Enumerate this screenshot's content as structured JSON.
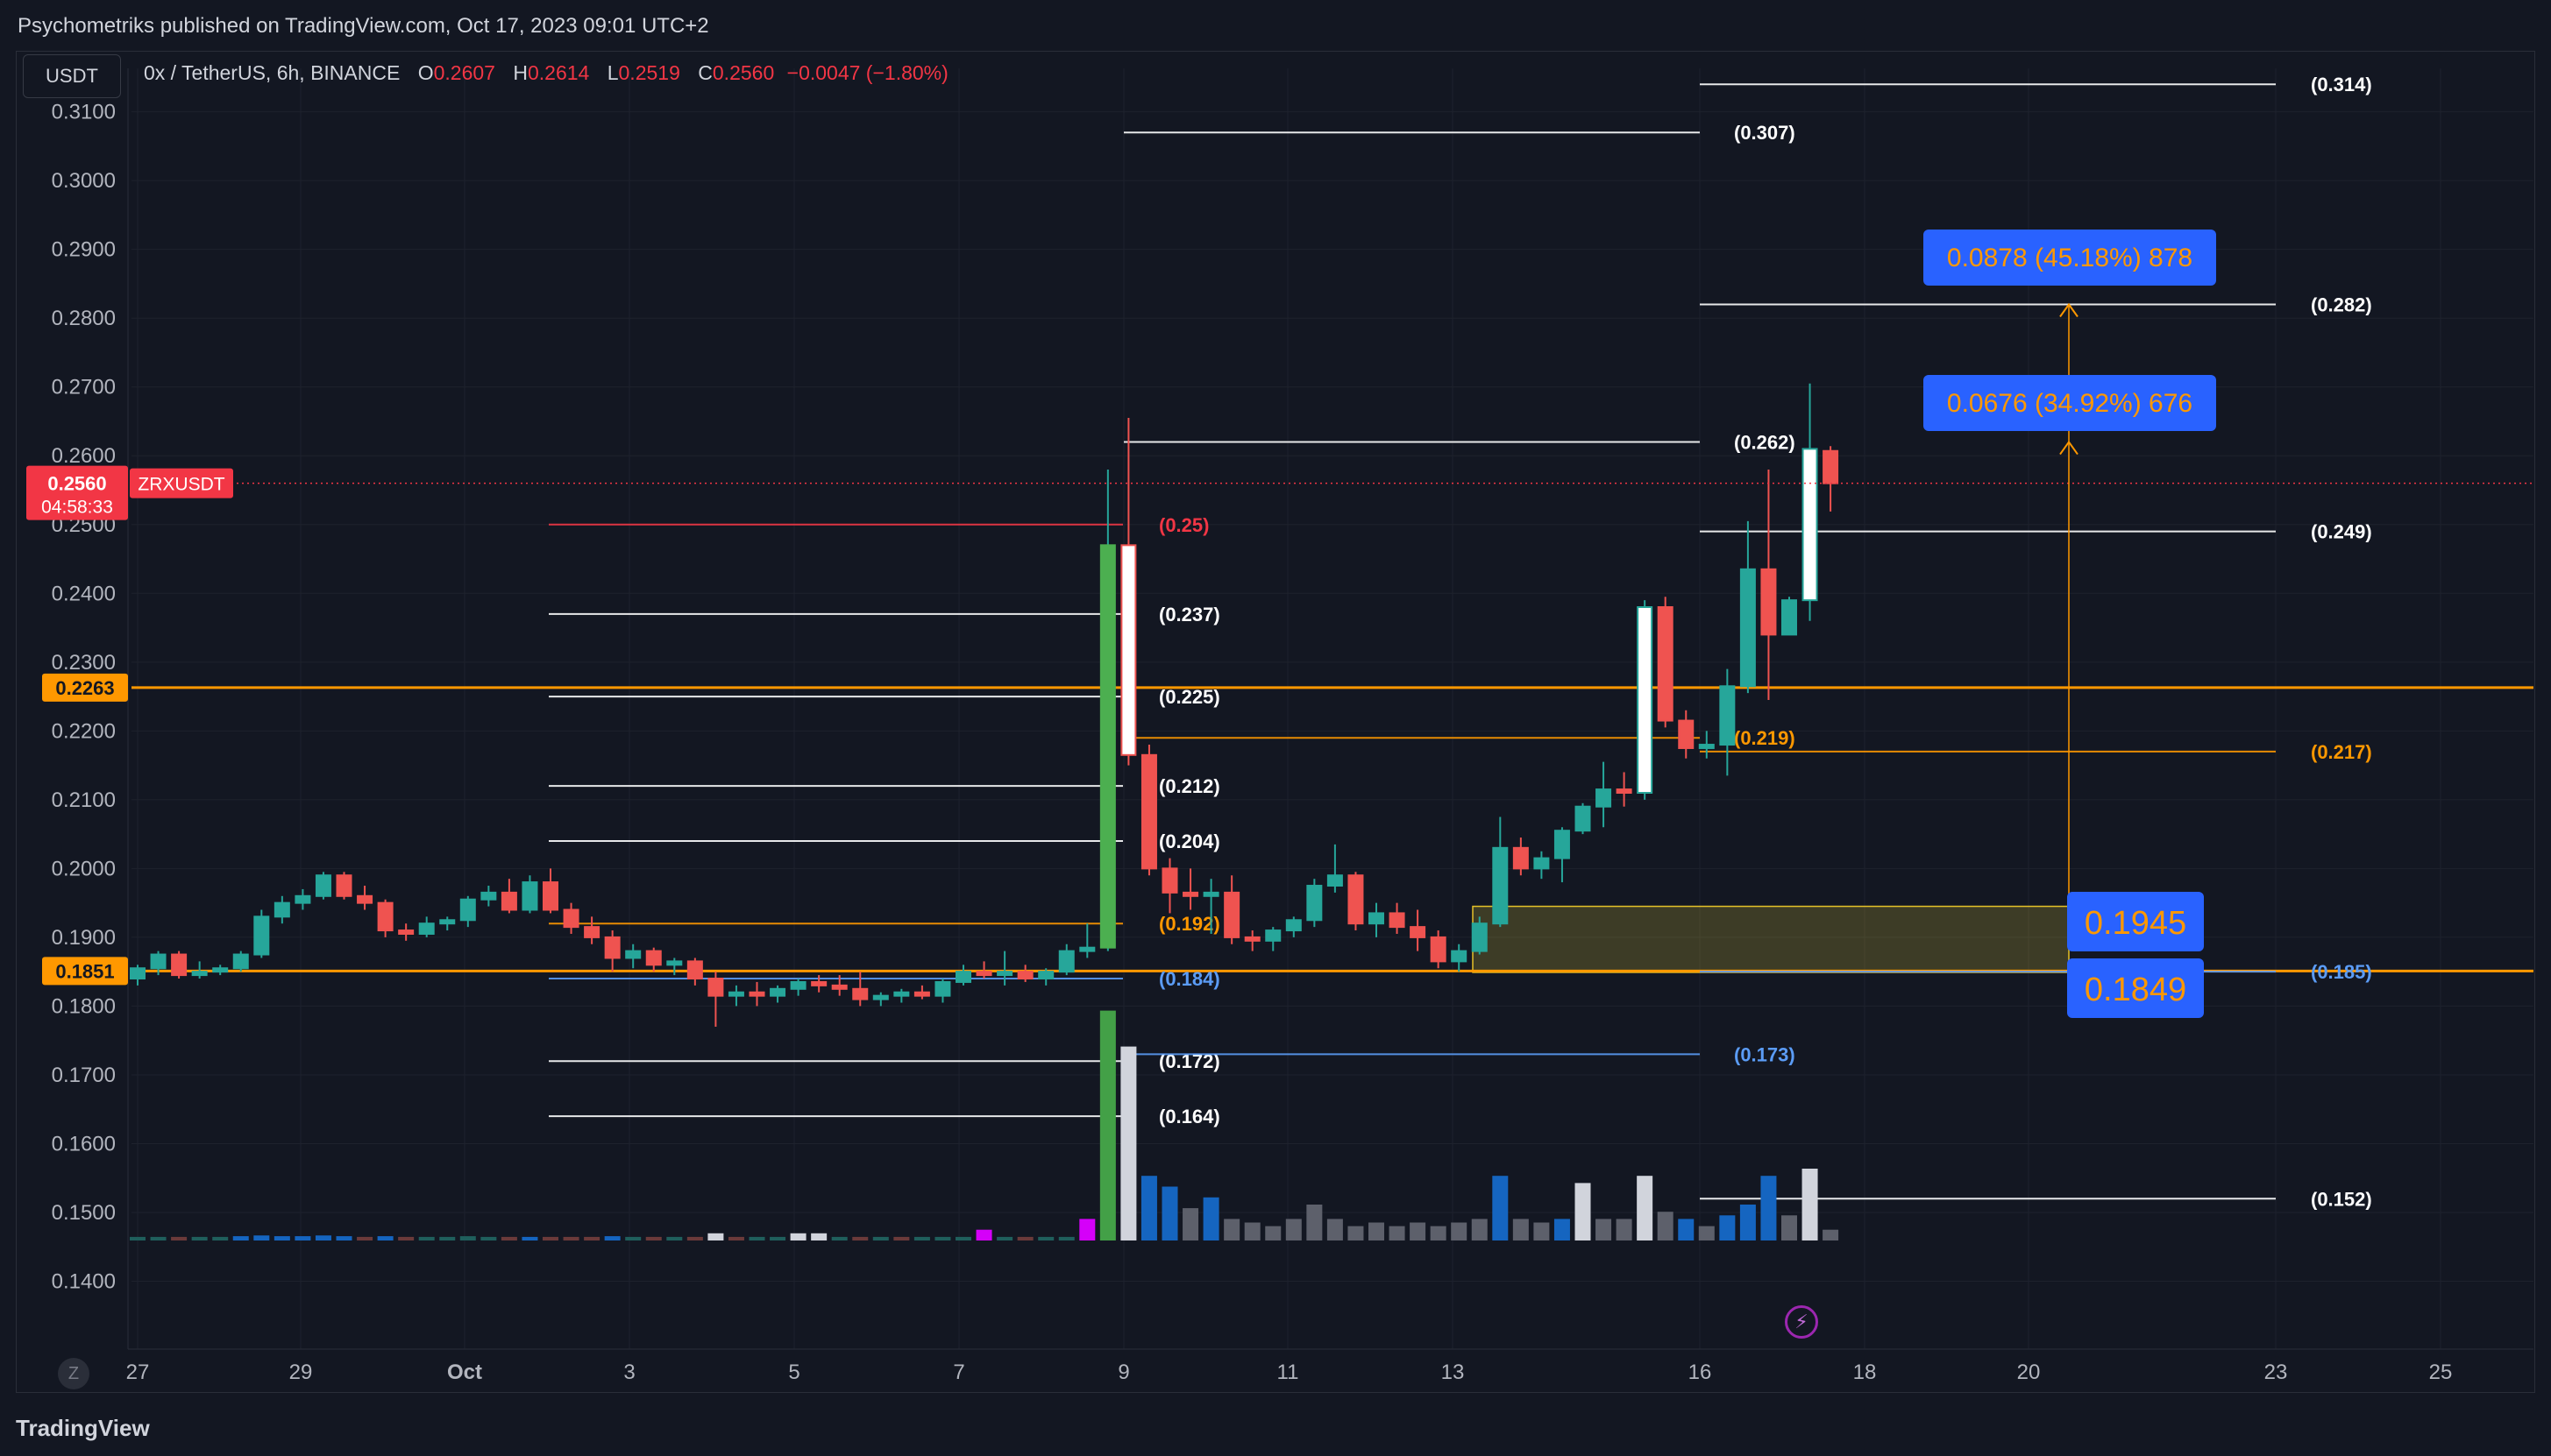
{
  "header": {
    "publish_text": "Psychometriks published on TradingView.com, Oct 17, 2023 09:01 UTC+2"
  },
  "toolbar": {
    "currency": "USDT"
  },
  "legend": {
    "symbol": "0x / TetherUS, 6h, BINANCE",
    "o_label": "O",
    "o_value": "0.2607",
    "h_label": "H",
    "h_value": "0.2614",
    "l_label": "L",
    "l_value": "0.2519",
    "c_label": "C",
    "c_value": "0.2560",
    "change": "−0.0047 (−1.80%)"
  },
  "footer": {
    "brand": "TradingView",
    "timezone_button": "Z"
  },
  "colors": {
    "background": "#131722",
    "up": "#26a69a",
    "down": "#ef5350",
    "big_up": "#4caf50",
    "accent": "#ff9800",
    "blue_label": "#2962ff",
    "grid": "#1e222d"
  },
  "chart_data": {
    "type": "candlestick",
    "title": "0x / TetherUS, 6h, BINANCE",
    "symbol": "ZRXUSDT",
    "y_axis": {
      "ticks": [
        "0.3100",
        "0.3000",
        "0.2900",
        "0.2800",
        "0.2700",
        "0.2600",
        "0.2500",
        "0.2400",
        "0.2300",
        "0.2200",
        "0.2100",
        "0.2000",
        "0.1900",
        "0.1800",
        "0.1700",
        "0.1600",
        "0.1500",
        "0.1400"
      ],
      "range": [
        0.1365,
        0.3125
      ]
    },
    "x_axis": {
      "ticks": [
        "27",
        "29",
        "Oct",
        "3",
        "5",
        "7",
        "9",
        "11",
        "13",
        "16",
        "18",
        "20",
        "23",
        "25"
      ]
    },
    "price_labels": [
      {
        "text": "0.2560",
        "sub": "04:58:33",
        "tag": "ZRXUSDT",
        "price": 0.256,
        "color": "#f23645"
      },
      {
        "text": "0.2263",
        "price": 0.2263,
        "color": "#ff9800"
      },
      {
        "text": "0.1851",
        "price": 0.1851,
        "color": "#ff9800"
      }
    ],
    "candles": [
      {
        "o": 0.184,
        "h": 0.186,
        "l": 0.183,
        "c": 0.1855
      },
      {
        "o": 0.1855,
        "h": 0.188,
        "l": 0.1845,
        "c": 0.1875
      },
      {
        "o": 0.1875,
        "h": 0.188,
        "l": 0.184,
        "c": 0.1845
      },
      {
        "o": 0.1845,
        "h": 0.1865,
        "l": 0.184,
        "c": 0.185
      },
      {
        "o": 0.185,
        "h": 0.186,
        "l": 0.1845,
        "c": 0.1855
      },
      {
        "o": 0.1855,
        "h": 0.188,
        "l": 0.185,
        "c": 0.1875
      },
      {
        "o": 0.1875,
        "h": 0.194,
        "l": 0.187,
        "c": 0.193
      },
      {
        "o": 0.193,
        "h": 0.196,
        "l": 0.192,
        "c": 0.195
      },
      {
        "o": 0.195,
        "h": 0.197,
        "l": 0.194,
        "c": 0.196
      },
      {
        "o": 0.196,
        "h": 0.1995,
        "l": 0.1955,
        "c": 0.199
      },
      {
        "o": 0.199,
        "h": 0.1995,
        "l": 0.1955,
        "c": 0.196
      },
      {
        "o": 0.196,
        "h": 0.1975,
        "l": 0.194,
        "c": 0.195
      },
      {
        "o": 0.195,
        "h": 0.1955,
        "l": 0.19,
        "c": 0.191
      },
      {
        "o": 0.191,
        "h": 0.192,
        "l": 0.1895,
        "c": 0.1905
      },
      {
        "o": 0.1905,
        "h": 0.193,
        "l": 0.19,
        "c": 0.192
      },
      {
        "o": 0.192,
        "h": 0.193,
        "l": 0.191,
        "c": 0.1925
      },
      {
        "o": 0.1925,
        "h": 0.196,
        "l": 0.1915,
        "c": 0.1955
      },
      {
        "o": 0.1955,
        "h": 0.1975,
        "l": 0.1945,
        "c": 0.1965
      },
      {
        "o": 0.1965,
        "h": 0.1985,
        "l": 0.1935,
        "c": 0.194
      },
      {
        "o": 0.194,
        "h": 0.199,
        "l": 0.1935,
        "c": 0.198
      },
      {
        "o": 0.198,
        "h": 0.2,
        "l": 0.1935,
        "c": 0.194
      },
      {
        "o": 0.194,
        "h": 0.195,
        "l": 0.1905,
        "c": 0.1915
      },
      {
        "o": 0.1915,
        "h": 0.193,
        "l": 0.189,
        "c": 0.19
      },
      {
        "o": 0.19,
        "h": 0.191,
        "l": 0.185,
        "c": 0.187
      },
      {
        "o": 0.187,
        "h": 0.189,
        "l": 0.1855,
        "c": 0.188
      },
      {
        "o": 0.188,
        "h": 0.1885,
        "l": 0.185,
        "c": 0.186
      },
      {
        "o": 0.186,
        "h": 0.187,
        "l": 0.1845,
        "c": 0.1865
      },
      {
        "o": 0.1865,
        "h": 0.187,
        "l": 0.183,
        "c": 0.184
      },
      {
        "o": 0.184,
        "h": 0.185,
        "l": 0.177,
        "c": 0.1815
      },
      {
        "o": 0.1815,
        "h": 0.183,
        "l": 0.18,
        "c": 0.182
      },
      {
        "o": 0.182,
        "h": 0.1835,
        "l": 0.18,
        "c": 0.1815
      },
      {
        "o": 0.1815,
        "h": 0.183,
        "l": 0.1805,
        "c": 0.1825
      },
      {
        "o": 0.1825,
        "h": 0.184,
        "l": 0.1815,
        "c": 0.1835
      },
      {
        "o": 0.1835,
        "h": 0.1845,
        "l": 0.182,
        "c": 0.183
      },
      {
        "o": 0.183,
        "h": 0.1845,
        "l": 0.1815,
        "c": 0.1825
      },
      {
        "o": 0.1825,
        "h": 0.185,
        "l": 0.18,
        "c": 0.181
      },
      {
        "o": 0.181,
        "h": 0.182,
        "l": 0.18,
        "c": 0.1815
      },
      {
        "o": 0.1815,
        "h": 0.1825,
        "l": 0.1805,
        "c": 0.182
      },
      {
        "o": 0.182,
        "h": 0.183,
        "l": 0.181,
        "c": 0.1815
      },
      {
        "o": 0.1815,
        "h": 0.184,
        "l": 0.1805,
        "c": 0.1835
      },
      {
        "o": 0.1835,
        "h": 0.186,
        "l": 0.183,
        "c": 0.185
      },
      {
        "o": 0.185,
        "h": 0.1865,
        "l": 0.184,
        "c": 0.1845
      },
      {
        "o": 0.1845,
        "h": 0.188,
        "l": 0.183,
        "c": 0.185
      },
      {
        "o": 0.185,
        "h": 0.186,
        "l": 0.1835,
        "c": 0.184
      },
      {
        "o": 0.184,
        "h": 0.1855,
        "l": 0.183,
        "c": 0.185
      },
      {
        "o": 0.185,
        "h": 0.189,
        "l": 0.1845,
        "c": 0.188
      },
      {
        "o": 0.188,
        "h": 0.192,
        "l": 0.187,
        "c": 0.1885
      },
      {
        "o": 0.1885,
        "h": 0.258,
        "l": 0.188,
        "c": 0.247
      },
      {
        "o": 0.247,
        "h": 0.2655,
        "l": 0.215,
        "c": 0.2165
      },
      {
        "o": 0.2165,
        "h": 0.218,
        "l": 0.199,
        "c": 0.2
      },
      {
        "o": 0.2,
        "h": 0.2015,
        "l": 0.1935,
        "c": 0.1965
      },
      {
        "o": 0.1965,
        "h": 0.2,
        "l": 0.194,
        "c": 0.196
      },
      {
        "o": 0.196,
        "h": 0.1985,
        "l": 0.1905,
        "c": 0.1965
      },
      {
        "o": 0.1965,
        "h": 0.199,
        "l": 0.189,
        "c": 0.19
      },
      {
        "o": 0.19,
        "h": 0.191,
        "l": 0.188,
        "c": 0.1895
      },
      {
        "o": 0.1895,
        "h": 0.1915,
        "l": 0.188,
        "c": 0.191
      },
      {
        "o": 0.191,
        "h": 0.193,
        "l": 0.19,
        "c": 0.1925
      },
      {
        "o": 0.1925,
        "h": 0.1985,
        "l": 0.1915,
        "c": 0.1975
      },
      {
        "o": 0.1975,
        "h": 0.2035,
        "l": 0.1965,
        "c": 0.199
      },
      {
        "o": 0.199,
        "h": 0.1995,
        "l": 0.191,
        "c": 0.192
      },
      {
        "o": 0.192,
        "h": 0.195,
        "l": 0.19,
        "c": 0.1935
      },
      {
        "o": 0.1935,
        "h": 0.195,
        "l": 0.1905,
        "c": 0.1915
      },
      {
        "o": 0.1915,
        "h": 0.194,
        "l": 0.188,
        "c": 0.19
      },
      {
        "o": 0.19,
        "h": 0.191,
        "l": 0.1855,
        "c": 0.1865
      },
      {
        "o": 0.1865,
        "h": 0.189,
        "l": 0.185,
        "c": 0.188
      },
      {
        "o": 0.188,
        "h": 0.193,
        "l": 0.1875,
        "c": 0.192
      },
      {
        "o": 0.192,
        "h": 0.2075,
        "l": 0.1915,
        "c": 0.203
      },
      {
        "o": 0.203,
        "h": 0.2045,
        "l": 0.199,
        "c": 0.2
      },
      {
        "o": 0.2,
        "h": 0.2025,
        "l": 0.1985,
        "c": 0.2015
      },
      {
        "o": 0.2015,
        "h": 0.206,
        "l": 0.198,
        "c": 0.2055
      },
      {
        "o": 0.2055,
        "h": 0.2095,
        "l": 0.205,
        "c": 0.209
      },
      {
        "o": 0.209,
        "h": 0.2155,
        "l": 0.206,
        "c": 0.2115
      },
      {
        "o": 0.2115,
        "h": 0.214,
        "l": 0.209,
        "c": 0.211
      },
      {
        "o": 0.211,
        "h": 0.239,
        "l": 0.21,
        "c": 0.238
      },
      {
        "o": 0.238,
        "h": 0.2395,
        "l": 0.2205,
        "c": 0.2215
      },
      {
        "o": 0.2215,
        "h": 0.223,
        "l": 0.216,
        "c": 0.2175
      },
      {
        "o": 0.2175,
        "h": 0.22,
        "l": 0.216,
        "c": 0.218
      },
      {
        "o": 0.218,
        "h": 0.229,
        "l": 0.2135,
        "c": 0.2265
      },
      {
        "o": 0.2265,
        "h": 0.2505,
        "l": 0.2255,
        "c": 0.2435
      },
      {
        "o": 0.2435,
        "h": 0.258,
        "l": 0.2245,
        "c": 0.234
      },
      {
        "o": 0.234,
        "h": 0.2395,
        "l": 0.234,
        "c": 0.239
      },
      {
        "o": 0.239,
        "h": 0.2705,
        "l": 0.236,
        "c": 0.261
      },
      {
        "o": 0.2607,
        "h": 0.2614,
        "l": 0.2519,
        "c": 0.256
      }
    ],
    "volume": [
      {
        "v": 0.05,
        "c": "up"
      },
      {
        "v": 0.05,
        "c": "up"
      },
      {
        "v": 0.05,
        "c": "dn"
      },
      {
        "v": 0.05,
        "c": "up"
      },
      {
        "v": 0.05,
        "c": "up"
      },
      {
        "v": 0.06,
        "c": "blue"
      },
      {
        "v": 0.07,
        "c": "blue"
      },
      {
        "v": 0.06,
        "c": "blue"
      },
      {
        "v": 0.06,
        "c": "blue"
      },
      {
        "v": 0.07,
        "c": "blue"
      },
      {
        "v": 0.06,
        "c": "blue"
      },
      {
        "v": 0.05,
        "c": "dn"
      },
      {
        "v": 0.06,
        "c": "blue"
      },
      {
        "v": 0.05,
        "c": "dn"
      },
      {
        "v": 0.05,
        "c": "up"
      },
      {
        "v": 0.05,
        "c": "up"
      },
      {
        "v": 0.06,
        "c": "up"
      },
      {
        "v": 0.05,
        "c": "up"
      },
      {
        "v": 0.05,
        "c": "dn"
      },
      {
        "v": 0.05,
        "c": "blue"
      },
      {
        "v": 0.05,
        "c": "dn"
      },
      {
        "v": 0.05,
        "c": "dn"
      },
      {
        "v": 0.05,
        "c": "dn"
      },
      {
        "v": 0.06,
        "c": "blue"
      },
      {
        "v": 0.05,
        "c": "up"
      },
      {
        "v": 0.05,
        "c": "dn"
      },
      {
        "v": 0.05,
        "c": "up"
      },
      {
        "v": 0.05,
        "c": "dn"
      },
      {
        "v": 0.1,
        "c": "white"
      },
      {
        "v": 0.05,
        "c": "dn"
      },
      {
        "v": 0.05,
        "c": "up"
      },
      {
        "v": 0.05,
        "c": "up"
      },
      {
        "v": 0.1,
        "c": "white"
      },
      {
        "v": 0.1,
        "c": "white"
      },
      {
        "v": 0.05,
        "c": "up"
      },
      {
        "v": 0.05,
        "c": "dn"
      },
      {
        "v": 0.05,
        "c": "up"
      },
      {
        "v": 0.05,
        "c": "dn"
      },
      {
        "v": 0.05,
        "c": "up"
      },
      {
        "v": 0.05,
        "c": "up"
      },
      {
        "v": 0.05,
        "c": "up"
      },
      {
        "v": 0.15,
        "c": "magenta"
      },
      {
        "v": 0.05,
        "c": "up"
      },
      {
        "v": 0.05,
        "c": "dn"
      },
      {
        "v": 0.05,
        "c": "up"
      },
      {
        "v": 0.05,
        "c": "up"
      },
      {
        "v": 0.3,
        "c": "magenta"
      },
      {
        "v": 3.2,
        "c": "green"
      },
      {
        "v": 2.7,
        "c": "white"
      },
      {
        "v": 0.9,
        "c": "blue"
      },
      {
        "v": 0.75,
        "c": "blue"
      },
      {
        "v": 0.45,
        "c": "gray"
      },
      {
        "v": 0.6,
        "c": "blue"
      },
      {
        "v": 0.3,
        "c": "gray"
      },
      {
        "v": 0.25,
        "c": "gray"
      },
      {
        "v": 0.2,
        "c": "gray"
      },
      {
        "v": 0.3,
        "c": "gray"
      },
      {
        "v": 0.5,
        "c": "gray"
      },
      {
        "v": 0.3,
        "c": "gray"
      },
      {
        "v": 0.2,
        "c": "gray"
      },
      {
        "v": 0.25,
        "c": "gray"
      },
      {
        "v": 0.2,
        "c": "gray"
      },
      {
        "v": 0.25,
        "c": "gray"
      },
      {
        "v": 0.2,
        "c": "gray"
      },
      {
        "v": 0.25,
        "c": "gray"
      },
      {
        "v": 0.3,
        "c": "gray"
      },
      {
        "v": 0.9,
        "c": "blue"
      },
      {
        "v": 0.3,
        "c": "gray"
      },
      {
        "v": 0.25,
        "c": "gray"
      },
      {
        "v": 0.3,
        "c": "blue"
      },
      {
        "v": 0.8,
        "c": "white"
      },
      {
        "v": 0.3,
        "c": "gray"
      },
      {
        "v": 0.3,
        "c": "gray"
      },
      {
        "v": 0.9,
        "c": "white"
      },
      {
        "v": 0.4,
        "c": "gray"
      },
      {
        "v": 0.3,
        "c": "blue"
      },
      {
        "v": 0.2,
        "c": "gray"
      },
      {
        "v": 0.35,
        "c": "blue"
      },
      {
        "v": 0.5,
        "c": "blue"
      },
      {
        "v": 0.9,
        "c": "blue"
      },
      {
        "v": 0.35,
        "c": "gray"
      },
      {
        "v": 1.0,
        "c": "white"
      },
      {
        "v": 0.15,
        "c": "gray"
      }
    ],
    "levels_left": [
      {
        "label": "(0.25)",
        "price": 0.25,
        "color": "#f23645"
      },
      {
        "label": "(0.237)",
        "price": 0.237,
        "color": "#ffffff"
      },
      {
        "label": "(0.225)",
        "price": 0.225,
        "color": "#ffffff"
      },
      {
        "label": "(0.212)",
        "price": 0.212,
        "color": "#ffffff"
      },
      {
        "label": "(0.204)",
        "price": 0.204,
        "color": "#ffffff"
      },
      {
        "label": "(0.192)",
        "price": 0.192,
        "color": "#ff9800"
      },
      {
        "label": "(0.184)",
        "price": 0.184,
        "color": "#5b9cf6"
      },
      {
        "label": "(0.172)",
        "price": 0.172,
        "color": "#ffffff"
      },
      {
        "label": "(0.164)",
        "price": 0.164,
        "color": "#ffffff"
      }
    ],
    "levels_mid": [
      {
        "label": "(0.307)",
        "price": 0.307,
        "color": "#ffffff"
      },
      {
        "label": "(0.262)",
        "price": 0.262,
        "color": "#ffffff"
      },
      {
        "label": "(0.219)",
        "price": 0.219,
        "color": "#ff9800"
      },
      {
        "label": "(0.173)",
        "price": 0.173,
        "color": "#5b9cf6"
      }
    ],
    "levels_right": [
      {
        "label": "(0.314)",
        "price": 0.314,
        "color": "#ffffff"
      },
      {
        "label": "(0.282)",
        "price": 0.282,
        "color": "#ffffff"
      },
      {
        "label": "(0.249)",
        "price": 0.249,
        "color": "#ffffff"
      },
      {
        "label": "(0.217)",
        "price": 0.217,
        "color": "#ff9800"
      },
      {
        "label": "(0.185)",
        "price": 0.185,
        "color": "#5b9cf6"
      },
      {
        "label": "(0.152)",
        "price": 0.152,
        "color": "#ffffff"
      }
    ],
    "horizontal_lines": [
      {
        "price": 0.2263,
        "color": "#ff9800"
      },
      {
        "price": 0.1851,
        "color": "#ff9800"
      }
    ],
    "zone": {
      "top": 0.1945,
      "bottom": 0.1849
    },
    "measurements": [
      {
        "text": "0.0878 (45.18%) 878",
        "target": 0.282
      },
      {
        "text": "0.0676 (34.92%) 676",
        "target": 0.262
      }
    ],
    "zone_labels": [
      {
        "text": "0.1945",
        "price": 0.1945
      },
      {
        "text": "0.1849",
        "price": 0.1849
      }
    ]
  }
}
